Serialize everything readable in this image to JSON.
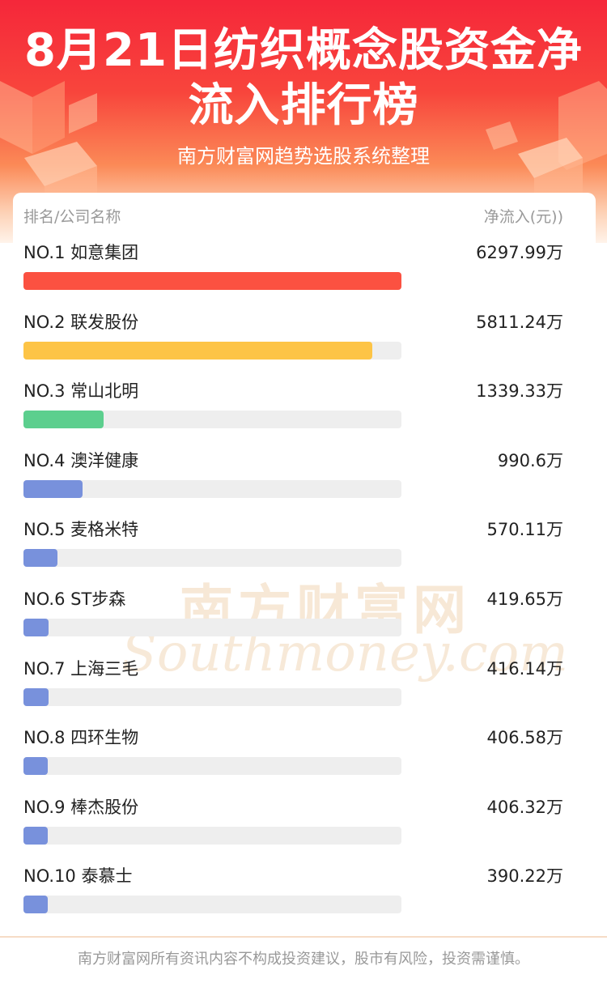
{
  "header": {
    "title_line1": "8月21日纺织概念股资金净",
    "title_line2": "流入排行榜",
    "subtitle": "南方财富网趋势选股系统整理"
  },
  "table": {
    "col_left": "排名/公司名称",
    "col_right": "净流入(元))"
  },
  "chart_data": {
    "type": "bar",
    "orientation": "horizontal",
    "unit": "万",
    "xlim": [
      0,
      6297.99
    ],
    "rows": [
      {
        "rank": "NO.1",
        "name": "如意集团",
        "value": 6297.99,
        "display": "6297.99万",
        "color": "#fb5141"
      },
      {
        "rank": "NO.2",
        "name": "联发股份",
        "value": 5811.24,
        "display": "5811.24万",
        "color": "#fdc446"
      },
      {
        "rank": "NO.3",
        "name": "常山北明",
        "value": 1339.33,
        "display": "1339.33万",
        "color": "#5ccf8e"
      },
      {
        "rank": "NO.4",
        "name": "澳洋健康",
        "value": 990.6,
        "display": "990.6万",
        "color": "#7891dc"
      },
      {
        "rank": "NO.5",
        "name": "麦格米特",
        "value": 570.11,
        "display": "570.11万",
        "color": "#7891dc"
      },
      {
        "rank": "NO.6",
        "name": "ST步森",
        "value": 419.65,
        "display": "419.65万",
        "color": "#7891dc"
      },
      {
        "rank": "NO.7",
        "name": "上海三毛",
        "value": 416.14,
        "display": "416.14万",
        "color": "#7891dc"
      },
      {
        "rank": "NO.8",
        "name": "四环生物",
        "value": 406.58,
        "display": "406.58万",
        "color": "#7891dc"
      },
      {
        "rank": "NO.9",
        "name": "棒杰股份",
        "value": 406.32,
        "display": "406.32万",
        "color": "#7891dc"
      },
      {
        "rank": "NO.10",
        "name": "泰慕士",
        "value": 390.22,
        "display": "390.22万",
        "color": "#7891dc"
      }
    ]
  },
  "watermark": {
    "cn": "南方财富网",
    "en": "Southmoney.com"
  },
  "footer": {
    "disclaimer": "南方财富网所有资讯内容不构成投资建议，股市有风险，投资需谨慎。"
  }
}
